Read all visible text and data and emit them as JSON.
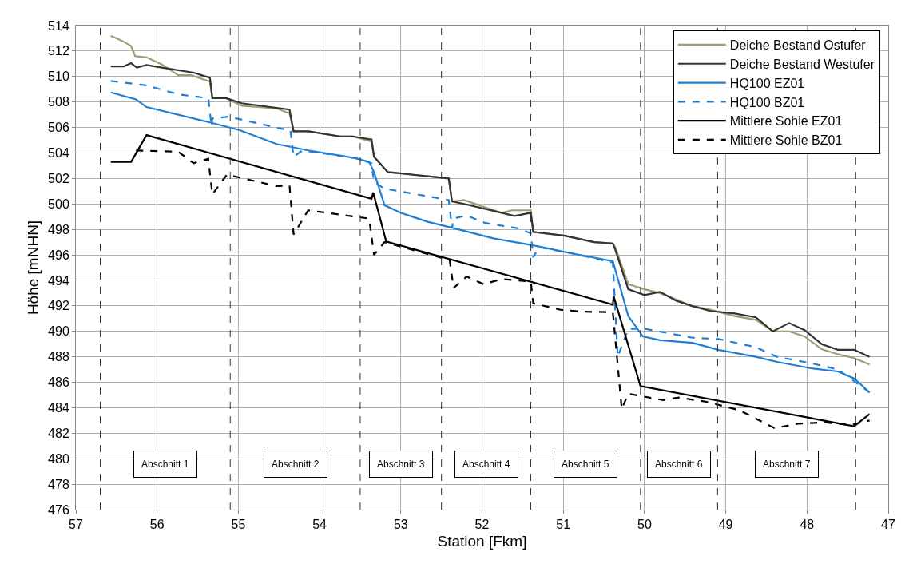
{
  "chart_data": {
    "type": "line",
    "xlabel": "Station [Fkm]",
    "ylabel": "Höhe [mNHN]",
    "xlim": [
      57,
      47
    ],
    "xticks": [
      57,
      56,
      55,
      54,
      53,
      52,
      51,
      50,
      49,
      48,
      47
    ],
    "ylim": [
      476,
      514
    ],
    "yticks": [
      476,
      478,
      480,
      482,
      484,
      486,
      488,
      490,
      492,
      494,
      496,
      498,
      500,
      502,
      504,
      506,
      508,
      510,
      512,
      514
    ],
    "grid": true,
    "legend": "top right",
    "line_style": "solid",
    "marker": "none",
    "series": [
      {
        "name": "Deiche Bestand Ostufer",
        "color": "#a39b73",
        "x": [
          56.57,
          56.43,
          56.32,
          56.27,
          56.13,
          55.94,
          55.74,
          55.58,
          55.35,
          55.32,
          55.15,
          54.96,
          54.53,
          54.37,
          54.32,
          54.14,
          53.75,
          53.59,
          53.36,
          53.33,
          53.16,
          52.41,
          52.37,
          52.22,
          51.76,
          51.63,
          51.4,
          51.37,
          50.98,
          50.62,
          50.39,
          50.36,
          50.2,
          50.0,
          49.81,
          49.61,
          49.42,
          49.19,
          48.89,
          48.63,
          48.42,
          48.22,
          48.03,
          47.82,
          47.62,
          47.42,
          47.23
        ],
        "values": [
          513.2,
          512.8,
          512.4,
          511.6,
          511.5,
          510.95,
          510.1,
          510.1,
          509.6,
          508.3,
          508.3,
          507.7,
          507.5,
          507.1,
          505.7,
          505.7,
          505.3,
          505.3,
          504.9,
          503.7,
          502.5,
          502.0,
          500.2,
          500.3,
          499.3,
          499.5,
          499.5,
          497.8,
          497.5,
          497.0,
          496.9,
          496.6,
          493.7,
          493.3,
          493.0,
          492.5,
          492.0,
          491.7,
          491.2,
          490.9,
          490.0,
          490.0,
          489.6,
          488.6,
          488.2,
          487.9,
          487.4
        ]
      },
      {
        "name": "Deiche Bestand Westufer",
        "color": "#333333",
        "x": [
          56.57,
          56.41,
          56.32,
          56.25,
          56.13,
          55.94,
          55.55,
          55.35,
          55.32,
          55.15,
          54.96,
          54.37,
          54.32,
          54.14,
          53.75,
          53.59,
          53.36,
          53.33,
          53.16,
          52.41,
          52.37,
          52.22,
          51.76,
          51.6,
          51.4,
          51.37,
          50.98,
          50.62,
          50.39,
          50.36,
          50.2,
          50.0,
          49.81,
          49.61,
          49.42,
          49.19,
          48.89,
          48.63,
          48.42,
          48.22,
          48.03,
          47.82,
          47.62,
          47.42,
          47.23
        ],
        "values": [
          510.8,
          510.8,
          511.05,
          510.7,
          510.9,
          510.7,
          510.3,
          509.9,
          508.3,
          508.3,
          507.9,
          507.4,
          505.7,
          505.7,
          505.3,
          505.3,
          505.05,
          503.7,
          502.5,
          502.0,
          500.2,
          500.0,
          499.3,
          499.05,
          499.3,
          497.8,
          497.5,
          497.0,
          496.9,
          496.4,
          493.3,
          492.85,
          493.1,
          492.4,
          492.0,
          491.6,
          491.4,
          491.1,
          490.0,
          490.65,
          490.1,
          489.0,
          488.55,
          488.55,
          488.0
        ]
      },
      {
        "name": "HQ100 EZ01",
        "color": "#1f7fd4",
        "x": [
          56.57,
          56.26,
          56.13,
          55.35,
          54.99,
          54.53,
          54.14,
          53.56,
          53.39,
          53.33,
          53.2,
          53.0,
          52.67,
          52.35,
          51.86,
          51.37,
          50.88,
          50.39,
          50.2,
          50.02,
          49.81,
          49.41,
          49.09,
          48.63,
          48.37,
          47.95,
          47.62,
          47.42,
          47.23
        ],
        "values": [
          508.75,
          508.2,
          507.6,
          506.4,
          505.8,
          504.7,
          504.2,
          503.6,
          503.3,
          502.5,
          499.9,
          499.3,
          498.6,
          498.1,
          497.3,
          496.75,
          496.1,
          495.5,
          491.2,
          489.6,
          489.3,
          489.1,
          488.55,
          488.0,
          487.6,
          487.1,
          486.85,
          486.3,
          485.2
        ]
      },
      {
        "name": "HQ100 BZ01",
        "color": "#1f7fd4",
        "line_style": "dashed",
        "x": [
          56.57,
          56.13,
          55.74,
          55.37,
          55.33,
          55.32,
          55.12,
          54.47,
          54.36,
          54.32,
          54.21,
          53.56,
          53.36,
          53.33,
          53.2,
          52.41,
          52.37,
          52.35,
          52.19,
          51.96,
          51.57,
          51.4,
          51.37,
          51.3,
          50.88,
          50.39,
          50.33,
          50.2,
          50.0,
          49.41,
          49.09,
          48.63,
          48.37,
          47.95,
          47.62,
          47.23
        ],
        "values": [
          509.65,
          509.3,
          508.6,
          508.3,
          506.1,
          506.7,
          506.85,
          505.9,
          505.8,
          503.7,
          504.2,
          503.6,
          503.2,
          501.7,
          501.2,
          500.3,
          498.1,
          498.85,
          499.1,
          498.5,
          498.1,
          497.7,
          495.8,
          496.6,
          496.1,
          495.4,
          488.0,
          490.2,
          490.2,
          489.5,
          489.4,
          488.75,
          488.0,
          487.5,
          487.0,
          485.2
        ]
      },
      {
        "name": "Mittlere Sohle EZ01",
        "color": "#000000",
        "x": [
          56.57,
          56.32,
          56.13,
          53.36,
          53.34,
          53.18,
          50.39,
          50.38,
          50.05,
          47.42,
          47.23
        ],
        "values": [
          503.3,
          503.3,
          505.4,
          500.4,
          500.9,
          497.05,
          492.1,
          492.75,
          485.7,
          482.55,
          483.5
        ]
      },
      {
        "name": "Mittlere Sohle BZ01",
        "color": "#000000",
        "line_style": "dashed",
        "x": [
          56.26,
          55.74,
          55.55,
          55.37,
          55.32,
          55.14,
          54.53,
          54.37,
          54.32,
          54.14,
          53.39,
          53.33,
          53.2,
          52.4,
          52.35,
          52.19,
          51.98,
          51.76,
          51.4,
          51.37,
          51.04,
          50.78,
          50.39,
          50.28,
          50.2,
          49.77,
          49.58,
          49.22,
          48.83,
          48.4,
          48.11,
          47.78,
          47.46,
          47.23
        ],
        "values": [
          504.2,
          504.1,
          503.2,
          503.55,
          500.75,
          502.3,
          501.4,
          501.45,
          497.6,
          499.5,
          498.85,
          496.0,
          497.0,
          495.6,
          493.4,
          494.3,
          493.7,
          494.1,
          493.9,
          492.2,
          491.7,
          491.55,
          491.5,
          483.9,
          485.1,
          484.6,
          484.8,
          484.45,
          483.8,
          482.4,
          482.75,
          482.85,
          482.65,
          483.0
        ]
      }
    ],
    "ref_lines": [
      {
        "axis": "x",
        "value": 56.7,
        "color": "#333333",
        "line_style": "dashed"
      },
      {
        "axis": "x",
        "value": 55.1,
        "color": "#333333",
        "line_style": "dashed"
      },
      {
        "axis": "x",
        "value": 53.5,
        "color": "#333333",
        "line_style": "dashed"
      },
      {
        "axis": "x",
        "value": 52.5,
        "color": "#333333",
        "line_style": "dashed"
      },
      {
        "axis": "x",
        "value": 51.4,
        "color": "#333333",
        "line_style": "dashed"
      },
      {
        "axis": "x",
        "value": 50.05,
        "color": "#333333",
        "line_style": "dashed"
      },
      {
        "axis": "x",
        "value": 49.1,
        "color": "#333333",
        "line_style": "dashed"
      },
      {
        "axis": "x",
        "value": 47.4,
        "color": "#333333",
        "line_style": "dashed"
      }
    ],
    "annotations": [
      "Abschnitt 1",
      "Abschnitt 2",
      "Abschnitt 3",
      "Abschnitt 4",
      "Abschnitt 5",
      "Abschnitt 6",
      "Abschnitt 7"
    ]
  }
}
